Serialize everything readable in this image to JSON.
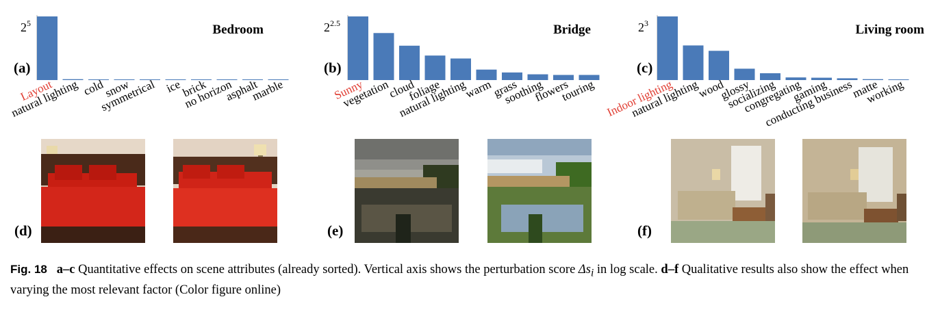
{
  "chart_data": [
    {
      "type": "bar",
      "panel_label": "(a)",
      "title": "Bedroom",
      "ytick_base": "2",
      "ytick_exp": "5",
      "log_scale": true,
      "highlight_color": "#e03c31",
      "bar_color": "#4a7ab8",
      "categories": [
        "Layout",
        "natural lighting",
        "cold",
        "snow",
        "symmetrical",
        "ice",
        "brick",
        "no horizon",
        "asphalt",
        "marble"
      ],
      "values": [
        32,
        1.05,
        1.03,
        1.02,
        1.02,
        1.02,
        1.01,
        1.01,
        1.01,
        1.01
      ],
      "ylim": [
        1,
        32
      ]
    },
    {
      "type": "bar",
      "panel_label": "(b)",
      "title": "Bridge",
      "ytick_base": "2",
      "ytick_exp": "2.5",
      "log_scale": true,
      "highlight_color": "#e03c31",
      "bar_color": "#4a7ab8",
      "categories": [
        "Sunny",
        "vegetation",
        "cloud",
        "foliage",
        "natural lighting",
        "warm",
        "grass",
        "soothing",
        "flowers",
        "touring"
      ],
      "values": [
        5.66,
        3.6,
        2.55,
        1.95,
        1.8,
        1.33,
        1.23,
        1.17,
        1.15,
        1.15
      ],
      "ylim": [
        1,
        5.66
      ]
    },
    {
      "type": "bar",
      "panel_label": "(c)",
      "title": "Living room",
      "ytick_base": "2",
      "ytick_exp": "3",
      "log_scale": true,
      "highlight_color": "#e03c31",
      "bar_color": "#4a7ab8",
      "categories": [
        "Indoor lighting",
        "natural lighting",
        "wood",
        "glossy",
        "socializing",
        "congregating",
        "gaming",
        "conducting business",
        "matte",
        "working"
      ],
      "values": [
        8,
        3.1,
        2.6,
        1.45,
        1.25,
        1.09,
        1.08,
        1.06,
        1.03,
        1.02
      ],
      "ylim": [
        1,
        8
      ]
    }
  ],
  "photo_labels": [
    "(d)",
    "(e)",
    "(f)"
  ],
  "caption": {
    "fig_no": "Fig. 18",
    "part1_bold": "a–c",
    "part1": " Quantitative effects on scene attributes (already sorted). Vertical axis shows the perturbation score ",
    "math": "Δs",
    "math_sub": "i",
    "part2": " in log scale. ",
    "part3_bold": "d–f",
    "part3": " Qualitative results also show the effect when varying the most relevant factor (Color figure online)"
  }
}
